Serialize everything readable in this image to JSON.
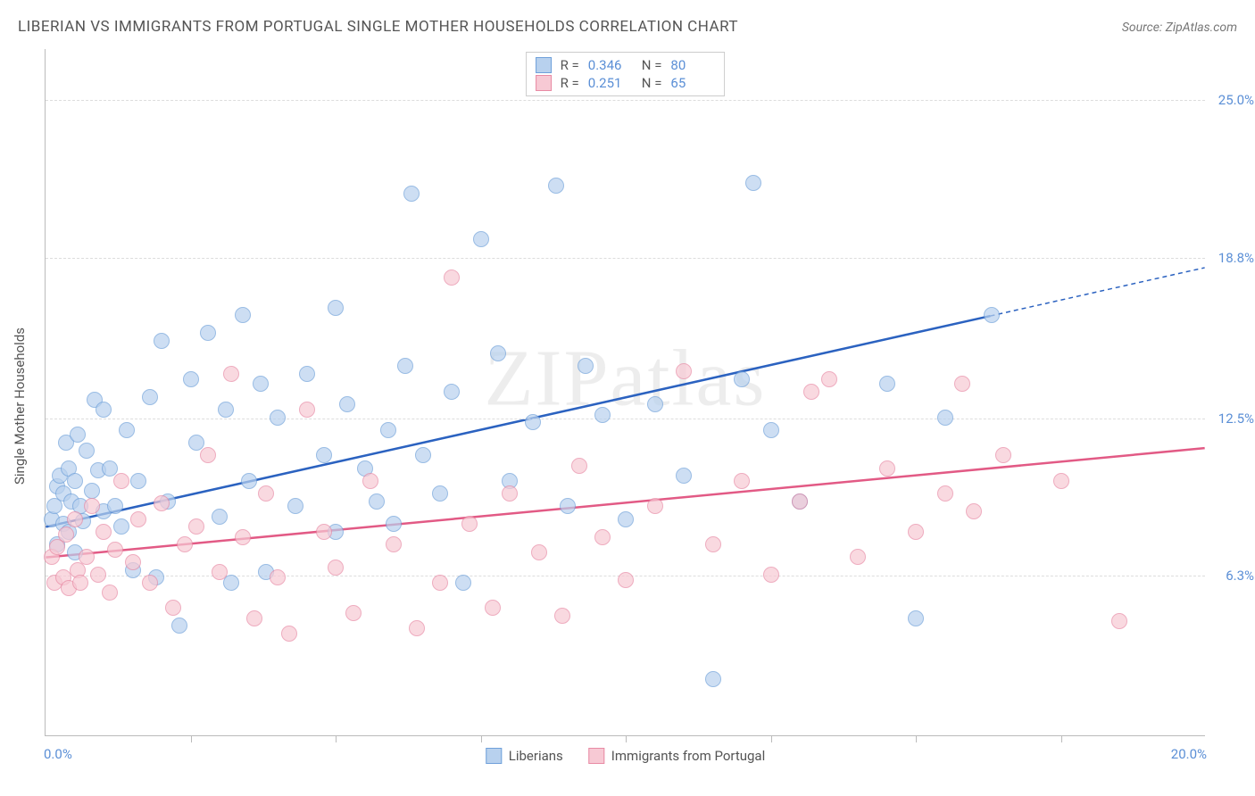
{
  "title": "LIBERIAN VS IMMIGRANTS FROM PORTUGAL SINGLE MOTHER HOUSEHOLDS CORRELATION CHART",
  "source": "Source: ZipAtlas.com",
  "y_axis_title": "Single Mother Households",
  "watermark": "ZIPatlas",
  "chart": {
    "type": "scatter",
    "xlim": [
      0,
      20
    ],
    "ylim": [
      0,
      27
    ],
    "background_color": "#ffffff",
    "grid_color": "#dddddd",
    "axis_color": "#bbbbbb",
    "xlim_labels": {
      "min": "0.0%",
      "max": "20.0%"
    },
    "xticks": [
      2.5,
      5,
      7.5,
      10,
      12.5,
      15,
      17.5
    ],
    "yticks": [
      {
        "value": 6.3,
        "label": "6.3%"
      },
      {
        "value": 12.5,
        "label": "12.5%"
      },
      {
        "value": 18.8,
        "label": "18.8%"
      },
      {
        "value": 25.0,
        "label": "25.0%"
      }
    ],
    "marker_radius": 9,
    "marker_opacity": 0.7,
    "tick_label_color": "#5b8fd6"
  },
  "series": [
    {
      "name": "Liberians",
      "fill_color": "#b8d1ee",
      "stroke_color": "#6fa0da",
      "trend_line_color": "#2b62c0",
      "trend_line_width": 2.5,
      "trend": {
        "x1": 0,
        "y1": 8.2,
        "x2_solid": 16.3,
        "y2_solid": 16.5,
        "x2": 20,
        "y2": 18.4
      },
      "R_label": "R =",
      "R_value": "0.346",
      "N_label": "N =",
      "N_value": "80",
      "points": [
        [
          0.1,
          8.5
        ],
        [
          0.15,
          9.0
        ],
        [
          0.2,
          7.5
        ],
        [
          0.2,
          9.8
        ],
        [
          0.25,
          10.2
        ],
        [
          0.3,
          8.3
        ],
        [
          0.3,
          9.5
        ],
        [
          0.35,
          11.5
        ],
        [
          0.4,
          8.0
        ],
        [
          0.4,
          10.5
        ],
        [
          0.45,
          9.2
        ],
        [
          0.5,
          7.2
        ],
        [
          0.5,
          10.0
        ],
        [
          0.55,
          11.8
        ],
        [
          0.6,
          9.0
        ],
        [
          0.65,
          8.4
        ],
        [
          0.7,
          11.2
        ],
        [
          0.8,
          9.6
        ],
        [
          0.85,
          13.2
        ],
        [
          0.9,
          10.4
        ],
        [
          1.0,
          8.8
        ],
        [
          1.0,
          12.8
        ],
        [
          1.1,
          10.5
        ],
        [
          1.2,
          9.0
        ],
        [
          1.3,
          8.2
        ],
        [
          1.4,
          12.0
        ],
        [
          1.5,
          6.5
        ],
        [
          1.6,
          10.0
        ],
        [
          1.8,
          13.3
        ],
        [
          1.9,
          6.2
        ],
        [
          2.0,
          15.5
        ],
        [
          2.1,
          9.2
        ],
        [
          2.3,
          4.3
        ],
        [
          2.5,
          14.0
        ],
        [
          2.6,
          11.5
        ],
        [
          2.8,
          15.8
        ],
        [
          3.0,
          8.6
        ],
        [
          3.1,
          12.8
        ],
        [
          3.2,
          6.0
        ],
        [
          3.4,
          16.5
        ],
        [
          3.5,
          10.0
        ],
        [
          3.7,
          13.8
        ],
        [
          3.8,
          6.4
        ],
        [
          4.0,
          12.5
        ],
        [
          4.3,
          9.0
        ],
        [
          4.5,
          14.2
        ],
        [
          4.8,
          11.0
        ],
        [
          5.0,
          16.8
        ],
        [
          5.0,
          8.0
        ],
        [
          5.2,
          13.0
        ],
        [
          5.5,
          10.5
        ],
        [
          5.7,
          9.2
        ],
        [
          5.9,
          12.0
        ],
        [
          6.0,
          8.3
        ],
        [
          6.2,
          14.5
        ],
        [
          6.3,
          21.3
        ],
        [
          6.5,
          11.0
        ],
        [
          6.8,
          9.5
        ],
        [
          7.0,
          13.5
        ],
        [
          7.2,
          6.0
        ],
        [
          7.5,
          19.5
        ],
        [
          7.8,
          15.0
        ],
        [
          8.0,
          10.0
        ],
        [
          8.4,
          12.3
        ],
        [
          8.8,
          21.6
        ],
        [
          9.0,
          9.0
        ],
        [
          9.3,
          14.5
        ],
        [
          9.6,
          12.6
        ],
        [
          10.0,
          8.5
        ],
        [
          10.5,
          13.0
        ],
        [
          11.0,
          10.2
        ],
        [
          11.5,
          2.2
        ],
        [
          12.0,
          14.0
        ],
        [
          12.2,
          21.7
        ],
        [
          12.5,
          12.0
        ],
        [
          13.0,
          9.2
        ],
        [
          14.5,
          13.8
        ],
        [
          15.0,
          4.6
        ],
        [
          15.5,
          12.5
        ],
        [
          16.3,
          16.5
        ]
      ]
    },
    {
      "name": "Immigrants from Portugal",
      "fill_color": "#f7c9d4",
      "stroke_color": "#e88aa4",
      "trend_line_color": "#e25a85",
      "trend_line_width": 2.5,
      "trend": {
        "x1": 0,
        "y1": 7.0,
        "x2_solid": 20,
        "y2_solid": 11.3,
        "x2": 20,
        "y2": 11.3
      },
      "R_label": "R =",
      "R_value": "0.251",
      "N_label": "N =",
      "N_value": "65",
      "points": [
        [
          0.1,
          7.0
        ],
        [
          0.15,
          6.0
        ],
        [
          0.2,
          7.4
        ],
        [
          0.3,
          6.2
        ],
        [
          0.35,
          7.9
        ],
        [
          0.4,
          5.8
        ],
        [
          0.5,
          8.5
        ],
        [
          0.55,
          6.5
        ],
        [
          0.6,
          6.0
        ],
        [
          0.7,
          7.0
        ],
        [
          0.8,
          9.0
        ],
        [
          0.9,
          6.3
        ],
        [
          1.0,
          8.0
        ],
        [
          1.1,
          5.6
        ],
        [
          1.2,
          7.3
        ],
        [
          1.3,
          10.0
        ],
        [
          1.5,
          6.8
        ],
        [
          1.6,
          8.5
        ],
        [
          1.8,
          6.0
        ],
        [
          2.0,
          9.1
        ],
        [
          2.2,
          5.0
        ],
        [
          2.4,
          7.5
        ],
        [
          2.6,
          8.2
        ],
        [
          2.8,
          11.0
        ],
        [
          3.0,
          6.4
        ],
        [
          3.2,
          14.2
        ],
        [
          3.4,
          7.8
        ],
        [
          3.6,
          4.6
        ],
        [
          3.8,
          9.5
        ],
        [
          4.0,
          6.2
        ],
        [
          4.2,
          4.0
        ],
        [
          4.5,
          12.8
        ],
        [
          4.8,
          8.0
        ],
        [
          5.0,
          6.6
        ],
        [
          5.3,
          4.8
        ],
        [
          5.6,
          10.0
        ],
        [
          6.0,
          7.5
        ],
        [
          6.4,
          4.2
        ],
        [
          6.8,
          6.0
        ],
        [
          7.0,
          18.0
        ],
        [
          7.3,
          8.3
        ],
        [
          7.7,
          5.0
        ],
        [
          8.0,
          9.5
        ],
        [
          8.5,
          7.2
        ],
        [
          8.9,
          4.7
        ],
        [
          9.2,
          10.6
        ],
        [
          9.6,
          7.8
        ],
        [
          10.0,
          6.1
        ],
        [
          10.5,
          9.0
        ],
        [
          11.0,
          14.3
        ],
        [
          11.5,
          7.5
        ],
        [
          12.0,
          10.0
        ],
        [
          12.5,
          6.3
        ],
        [
          13.0,
          9.2
        ],
        [
          13.2,
          13.5
        ],
        [
          13.5,
          14.0
        ],
        [
          14.0,
          7.0
        ],
        [
          14.5,
          10.5
        ],
        [
          15.0,
          8.0
        ],
        [
          15.5,
          9.5
        ],
        [
          15.8,
          13.8
        ],
        [
          16.0,
          8.8
        ],
        [
          16.5,
          11.0
        ],
        [
          17.5,
          10.0
        ],
        [
          18.5,
          4.5
        ]
      ]
    }
  ],
  "bottom_legend_title": ""
}
